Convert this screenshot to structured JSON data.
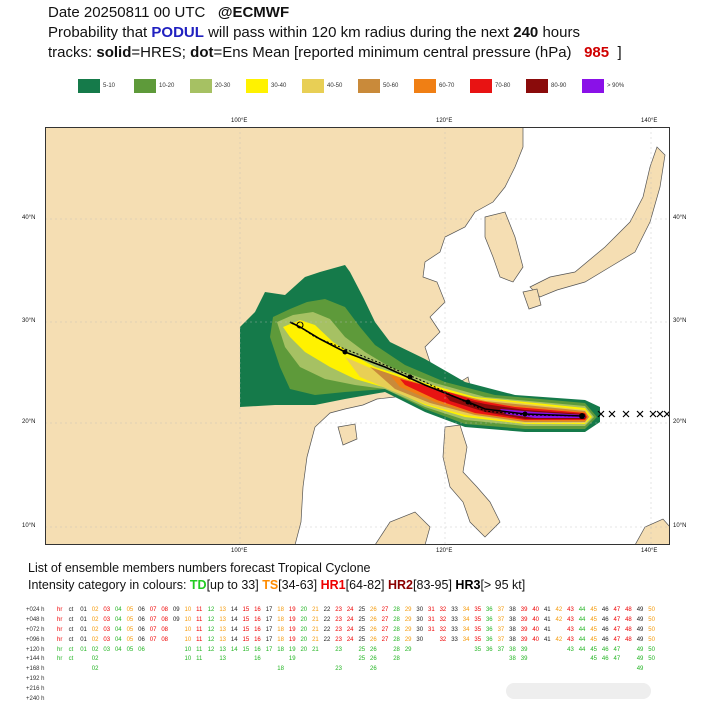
{
  "header": {
    "line1_prefix": "Date 20250811 00 UTC",
    "line1_source": "@ECMWF",
    "line2_a": "Probability that",
    "storm_name": "PODUL",
    "line2_b": "will pass within 120 km radius during the next",
    "hours": "240",
    "line2_c": "hours",
    "line3_a": "tracks:",
    "solid_word": "solid",
    "line3_b": "=HRES;",
    "dot_word": "dot",
    "line3_c": "=Ens Mean [reported minimum central pressure (hPa)",
    "pressure": "985",
    "line3_d": "]"
  },
  "legend": [
    {
      "label": "5-10",
      "color": "#157a4a"
    },
    {
      "label": "10-20",
      "color": "#5e9a3a"
    },
    {
      "label": "20-30",
      "color": "#a6c163"
    },
    {
      "label": "30-40",
      "color": "#fff200"
    },
    {
      "label": "40-50",
      "color": "#e8cf55"
    },
    {
      "label": "50-60",
      "color": "#c98a3a"
    },
    {
      "label": "60-70",
      "color": "#f07f14"
    },
    {
      "label": "70-80",
      "color": "#e81313"
    },
    {
      "label": "80-90",
      "color": "#8a0b0b"
    },
    {
      "label": "> 90%",
      "color": "#8a11e8"
    }
  ],
  "map": {
    "lon_labels": [
      "100°E",
      "120°E",
      "140°E"
    ],
    "lat_labels_left": [
      "40°N",
      "30°N",
      "20°N",
      "10°N"
    ],
    "lat_labels_right": [
      "40°N",
      "30°N",
      "20°N",
      "10°N"
    ]
  },
  "list": {
    "title": "List of ensemble members numbers forecast Tropical Cyclone",
    "intensity_prefix": "Intensity category in colours:",
    "td": "TD",
    "td_range": "[up to 33]",
    "ts": "TS",
    "ts_range": "[34-63]",
    "hr1": "HR1",
    "hr1_range": "[64-82]",
    "hr2": "HR2",
    "hr2_range": "[83-95]",
    "hr3": "HR3",
    "hr3_range": "[> 95 kt]"
  },
  "ensemble_rows": [
    {
      "lead": "+024 h",
      "cells": [
        "hr",
        "ct",
        "01",
        "02",
        "03",
        "04",
        "05",
        "06",
        "07",
        "08",
        "09",
        "10",
        "11",
        "12",
        "13",
        "14",
        "15",
        "16",
        "17",
        "18",
        "19",
        "20",
        "21",
        "22",
        "23",
        "24",
        "25",
        "26",
        "27",
        "28",
        "29",
        "30",
        "31",
        "32",
        "33",
        "34",
        "35",
        "36",
        "37",
        "38",
        "39",
        "40",
        "41",
        "42",
        "43",
        "44",
        "45",
        "46",
        "47",
        "48",
        "49",
        "50"
      ]
    },
    {
      "lead": "+048 h",
      "cells": [
        "hr",
        "ct",
        "01",
        "02",
        "03",
        "04",
        "05",
        "06",
        "07",
        "08",
        "09",
        "10",
        "11",
        "12",
        "13",
        "14",
        "15",
        "16",
        "17",
        "18",
        "19",
        "20",
        "21",
        "22",
        "23",
        "24",
        "25",
        "26",
        "27",
        "28",
        "29",
        "30",
        "31",
        "32",
        "33",
        "34",
        "35",
        "36",
        "37",
        "38",
        "39",
        "40",
        "41",
        "42",
        "43",
        "44",
        "45",
        "46",
        "47",
        "48",
        "49",
        "50"
      ]
    },
    {
      "lead": "+072 h",
      "cells": [
        "hr",
        "ct",
        "01",
        "02",
        "03",
        "04",
        "05",
        "06",
        "07",
        "08",
        "",
        "10",
        "11",
        "12",
        "13",
        "14",
        "15",
        "16",
        "17",
        "18",
        "19",
        "20",
        "21",
        "22",
        "23",
        "24",
        "25",
        "26",
        "27",
        "28",
        "29",
        "30",
        "31",
        "32",
        "33",
        "34",
        "35",
        "36",
        "37",
        "38",
        "39",
        "40",
        "41",
        "",
        "43",
        "44",
        "45",
        "46",
        "47",
        "48",
        "49",
        "50"
      ]
    },
    {
      "lead": "+096 h",
      "cells": [
        "hr",
        "ct",
        "01",
        "02",
        "03",
        "04",
        "05",
        "06",
        "07",
        "08",
        "",
        "10",
        "11",
        "12",
        "13",
        "14",
        "15",
        "16",
        "17",
        "18",
        "19",
        "20",
        "21",
        "22",
        "23",
        "24",
        "25",
        "26",
        "27",
        "28",
        "29",
        "30",
        "",
        "32",
        "33",
        "34",
        "35",
        "36",
        "37",
        "38",
        "39",
        "40",
        "41",
        "42",
        "43",
        "44",
        "45",
        "46",
        "47",
        "48",
        "49",
        "50"
      ]
    },
    {
      "lead": "+120 h",
      "cells": [
        "hr",
        "ct",
        "01",
        "02",
        "03",
        "04",
        "05",
        "06",
        "",
        "",
        "",
        "10",
        "11",
        "12",
        "13",
        "14",
        "15",
        "16",
        "17",
        "18",
        "19",
        "20",
        "21",
        "",
        "23",
        "",
        "25",
        "26",
        "",
        "28",
        "29",
        "",
        "",
        "",
        "",
        "",
        "35",
        "36",
        "37",
        "38",
        "39",
        "",
        "",
        "",
        "43",
        "44",
        "45",
        "46",
        "47",
        "",
        "49",
        "50"
      ]
    },
    {
      "lead": "+144 h",
      "cells": [
        "hr",
        "ct",
        "",
        "02",
        "",
        "",
        "",
        "",
        "",
        "",
        "",
        "10",
        "11",
        "",
        "13",
        "",
        "",
        "16",
        "",
        "",
        "19",
        "",
        "",
        "",
        "",
        "",
        "25",
        "26",
        "",
        "28",
        "",
        "",
        "",
        "",
        "",
        "",
        "",
        "",
        "",
        "38",
        "39",
        "",
        "",
        "",
        "",
        "",
        "45",
        "46",
        "47",
        "",
        "49",
        "50"
      ]
    },
    {
      "lead": "+168 h",
      "cells": [
        "",
        "",
        "",
        "02",
        "",
        "",
        "",
        "",
        "",
        "",
        "",
        "",
        "",
        "",
        "",
        "",
        "",
        "",
        "",
        "18",
        "",
        "",
        "",
        "",
        "23",
        "",
        "",
        "26",
        "",
        "",
        "",
        "",
        "",
        "",
        "",
        "",
        "",
        "",
        "",
        "",
        "",
        "",
        "",
        "",
        "",
        "",
        "",
        "",
        "",
        "",
        "49",
        ""
      ]
    },
    {
      "lead": "+192 h",
      "cells": []
    },
    {
      "lead": "+216 h",
      "cells": []
    },
    {
      "lead": "+240 h",
      "cells": []
    }
  ]
}
